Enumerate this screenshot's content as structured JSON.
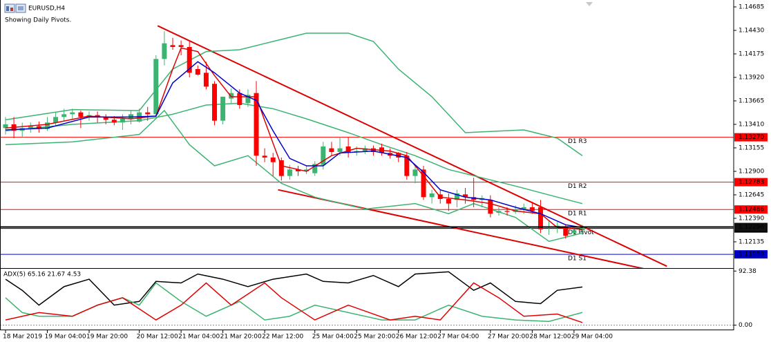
{
  "chart_data": {
    "type": "candlestick",
    "symbol_title": "EURUSD,H4",
    "subtitle": "Showing Daily Pivots.",
    "categories": [
      "18 Mar 2019",
      null,
      null,
      null,
      null,
      "19 Mar 04:00",
      null,
      null,
      null,
      null,
      "19 Mar 20:00",
      null,
      null,
      null,
      null,
      null,
      "20 Mar 12:00",
      null,
      null,
      null,
      null,
      "21 Mar 04:00",
      null,
      null,
      null,
      null,
      "21 Mar 20:00",
      null,
      null,
      null,
      null,
      "22 Mar 12:00",
      null,
      null,
      null,
      null,
      null,
      "25 Mar 04:00",
      null,
      null,
      null,
      null,
      "25 Mar 20:00",
      null,
      null,
      null,
      null,
      "26 Mar 12:00",
      null,
      null,
      null,
      null,
      "27 Mar 04:00",
      null,
      null,
      null,
      null,
      null,
      "27 Mar 20:00",
      null,
      null,
      null,
      null,
      "28 Mar 12:00",
      null,
      null,
      null,
      null,
      "29 Mar 04:00",
      null
    ],
    "ohlc": [
      [
        1.1337,
        1.1349,
        1.133,
        1.1341
      ],
      [
        1.1341,
        1.1349,
        1.1326,
        1.1334
      ],
      [
        1.1334,
        1.1343,
        1.1327,
        1.1337
      ],
      [
        1.1337,
        1.1343,
        1.1332,
        1.1339
      ],
      [
        1.1339,
        1.1344,
        1.1332,
        1.1336
      ],
      [
        1.1336,
        1.1349,
        1.1334,
        1.1343
      ],
      [
        1.1343,
        1.1354,
        1.134,
        1.1349
      ],
      [
        1.1349,
        1.1358,
        1.1345,
        1.1352
      ],
      [
        1.1352,
        1.1358,
        1.1347,
        1.1354
      ],
      [
        1.1354,
        1.1356,
        1.1337,
        1.1349
      ],
      [
        1.1349,
        1.1355,
        1.1345,
        1.1351
      ],
      [
        1.1351,
        1.1355,
        1.1343,
        1.1349
      ],
      [
        1.1349,
        1.1352,
        1.1341,
        1.1346
      ],
      [
        1.1346,
        1.135,
        1.134,
        1.1343
      ],
      [
        1.1343,
        1.1352,
        1.1335,
        1.1347
      ],
      [
        1.1347,
        1.1356,
        1.1341,
        1.1352
      ],
      [
        1.1344,
        1.1358,
        1.1343,
        1.1354
      ],
      [
        1.1354,
        1.136,
        1.1345,
        1.1352
      ],
      [
        1.1352,
        1.1416,
        1.1349,
        1.1412
      ],
      [
        1.1412,
        1.1442,
        1.1405,
        1.1429
      ],
      [
        1.1427,
        1.1435,
        1.1422,
        1.1425
      ],
      [
        1.1427,
        1.1432,
        1.1416,
        1.1425
      ],
      [
        1.1425,
        1.1431,
        1.1392,
        1.1397
      ],
      [
        1.1401,
        1.1405,
        1.1394,
        1.1395
      ],
      [
        1.1397,
        1.1409,
        1.1379,
        1.1382
      ],
      [
        1.1385,
        1.1388,
        1.134,
        1.1345
      ],
      [
        1.1345,
        1.1371,
        1.1341,
        1.1371
      ],
      [
        1.1369,
        1.138,
        1.1364,
        1.1375
      ],
      [
        1.1375,
        1.1379,
        1.1358,
        1.1362
      ],
      [
        1.1364,
        1.1379,
        1.136,
        1.1373
      ],
      [
        1.1375,
        1.1388,
        1.1296,
        1.1307
      ],
      [
        1.1307,
        1.1315,
        1.13,
        1.1305
      ],
      [
        1.1305,
        1.131,
        1.1285,
        1.13
      ],
      [
        1.1302,
        1.1305,
        1.128,
        1.1285
      ],
      [
        1.1285,
        1.1297,
        1.1281,
        1.1292
      ],
      [
        1.1292,
        1.1296,
        1.1285,
        1.129
      ],
      [
        1.129,
        1.1296,
        1.1287,
        1.1292
      ],
      [
        1.1288,
        1.1301,
        1.1285,
        1.1298
      ],
      [
        1.1297,
        1.1322,
        1.1292,
        1.1317
      ],
      [
        1.1315,
        1.1322,
        1.1307,
        1.1311
      ],
      [
        1.1311,
        1.1327,
        1.1307,
        1.1315
      ],
      [
        1.1317,
        1.1327,
        1.1305,
        1.131
      ],
      [
        1.1311,
        1.1317,
        1.1307,
        1.1312
      ],
      [
        1.1312,
        1.1318,
        1.1309,
        1.1315
      ],
      [
        1.1315,
        1.1318,
        1.1307,
        1.1311
      ],
      [
        1.1316,
        1.132,
        1.1307,
        1.131
      ],
      [
        1.131,
        1.1315,
        1.1304,
        1.1307
      ],
      [
        1.131,
        1.1311,
        1.13,
        1.1305
      ],
      [
        1.1307,
        1.1311,
        1.1281,
        1.1285
      ],
      [
        1.1285,
        1.1296,
        1.1277,
        1.1292
      ],
      [
        1.1292,
        1.1296,
        1.1259,
        1.1262
      ],
      [
        1.1262,
        1.127,
        1.1255,
        1.1266
      ],
      [
        1.1265,
        1.127,
        1.1255,
        1.126
      ],
      [
        1.126,
        1.1266,
        1.1247,
        1.1255
      ],
      [
        1.1259,
        1.127,
        1.1251,
        1.1266
      ],
      [
        1.1265,
        1.1272,
        1.1255,
        1.1262
      ],
      [
        1.1262,
        1.1283,
        1.1251,
        1.1259
      ],
      [
        1.1259,
        1.1264,
        1.1251,
        1.1261
      ],
      [
        1.1259,
        1.1264,
        1.124,
        1.1244
      ],
      [
        1.1245,
        1.1251,
        1.1242,
        1.1247
      ],
      [
        1.1247,
        1.1251,
        1.1242,
        1.1246
      ],
      [
        1.1246,
        1.1253,
        1.1244,
        1.1249
      ],
      [
        1.1249,
        1.1255,
        1.1244,
        1.1251
      ],
      [
        1.1251,
        1.1257,
        1.1244,
        1.1247
      ],
      [
        1.1251,
        1.1259,
        1.1223,
        1.1227
      ],
      [
        1.1229,
        1.1236,
        1.1221,
        1.123
      ],
      [
        1.1229,
        1.1235,
        1.1223,
        1.1231
      ],
      [
        1.1229,
        1.1232,
        1.1217,
        1.122
      ],
      [
        1.1223,
        1.1229,
        1.122,
        1.1226
      ],
      [
        1.1226,
        1.1232,
        1.1221,
        1.1229
      ]
    ],
    "up_color": "#3cb371",
    "down_color": "#ff0000",
    "xlim": [
      -0.66,
      87.1
    ],
    "ylim": [
      1.1185,
      1.1476
    ],
    "yticks": [
      1.14685,
      {
        "value": 1.1443,
        "label": "1.14430"
      },
      1.14175,
      {
        "value": 1.1392,
        "label": "1.13920"
      },
      1.13665,
      {
        "value": 1.1341,
        "label": "1.13410"
      },
      1.13155,
      {
        "value": 1.129,
        "label": "1.12900"
      },
      1.12645,
      {
        "value": 1.1239,
        "label": "1.12390"
      },
      1.12135
    ],
    "lines": [
      {
        "color": "#3cb371",
        "x": [
          0,
          8,
          16,
          20,
          24,
          28,
          32,
          36,
          41,
          44,
          47,
          51,
          55,
          62,
          66,
          69
        ],
        "values": [
          1.1346,
          1.1357,
          1.1356,
          1.1401,
          1.142,
          1.1422,
          1.1431,
          1.144,
          1.144,
          1.1431,
          1.1401,
          1.1371,
          1.1332,
          1.1335,
          1.1326,
          1.1307
        ]
      },
      {
        "color": "#3cb371",
        "x": [
          0,
          8,
          16,
          20,
          24,
          28,
          32,
          36,
          41,
          45,
          49,
          53,
          57,
          61,
          66,
          69
        ],
        "values": [
          1.1334,
          1.1341,
          1.1345,
          1.1352,
          1.1362,
          1.1364,
          1.1358,
          1.1347,
          1.1332,
          1.1319,
          1.1307,
          1.1292,
          1.1283,
          1.1274,
          1.1262,
          1.1255
        ]
      },
      {
        "color": "#3cb371",
        "x": [
          0,
          8,
          16,
          19,
          22,
          25,
          29,
          33,
          37,
          43,
          49,
          53,
          56,
          61,
          65,
          69
        ],
        "values": [
          1.1319,
          1.1322,
          1.133,
          1.1356,
          1.1319,
          1.1296,
          1.1307,
          1.1277,
          1.1262,
          1.1249,
          1.1255,
          1.1244,
          1.1255,
          1.124,
          1.1214,
          1.1223
        ]
      },
      {
        "color": "#e00000",
        "x": [
          0,
          5,
          10,
          15,
          18,
          20,
          21,
          23,
          25,
          27,
          30,
          31,
          33,
          36,
          39,
          42,
          46,
          48,
          50,
          52,
          55,
          58,
          61,
          64,
          66,
          69
        ],
        "values": [
          1.1337,
          1.1341,
          1.135,
          1.1347,
          1.135,
          1.1401,
          1.1424,
          1.142,
          1.1394,
          1.1371,
          1.1371,
          1.1345,
          1.1296,
          1.129,
          1.1307,
          1.1315,
          1.1312,
          1.1307,
          1.1285,
          1.1262,
          1.1259,
          1.1255,
          1.1247,
          1.1244,
          1.1229,
          1.1227
        ]
      },
      {
        "color": "#0000cd",
        "x": [
          0,
          5,
          10,
          15,
          18,
          20,
          23,
          25,
          28,
          30,
          32,
          34,
          36,
          38,
          40,
          44,
          48,
          50,
          52,
          55,
          58,
          61,
          64,
          67,
          69
        ],
        "values": [
          1.1335,
          1.1337,
          1.1349,
          1.1349,
          1.135,
          1.1386,
          1.1409,
          1.1397,
          1.1375,
          1.1367,
          1.1334,
          1.1304,
          1.1296,
          1.1296,
          1.131,
          1.1312,
          1.1305,
          1.1289,
          1.127,
          1.1262,
          1.1259,
          1.1251,
          1.1244,
          1.1232,
          1.1229
        ]
      }
    ],
    "trendlines": {
      "color": "#dd0000",
      "lines": [
        {
          "points": [
            [
              18.2,
              1.1448
            ],
            [
              79.1,
              1.1187
            ]
          ]
        },
        {
          "points": [
            [
              32.6,
              1.127
            ],
            [
              77,
              1.1183
            ]
          ]
        }
      ]
    },
    "pivots": [
      {
        "label": "D1 R3",
        "value": 1.1327,
        "price_label": "1.13270",
        "color": "#ff0000"
      },
      {
        "label": "D1 R2",
        "value": 1.12783,
        "color": "#ff0000"
      },
      {
        "label": "D1 R1",
        "value": 1.12486,
        "color": "#ff0000"
      },
      {
        "label": "D1 Pivot",
        "value": 1.1228,
        "color": "#000000"
      },
      {
        "label": "D1 S1",
        "value": 1.11999,
        "color": "#0000cd"
      }
    ],
    "current_price": 1.12296,
    "indicator": {
      "label": "ADX(5) 65.16 21.67 4.53",
      "ylim": [
        -8.7,
        96.3
      ],
      "yticks": [
        92.38,
        {
          "value": 0,
          "label": "0.00"
        }
      ],
      "series": [
        {
          "color": "#000000",
          "x": [
            0,
            2,
            4,
            7,
            10,
            13,
            16,
            18,
            21,
            23,
            26,
            29,
            32,
            36,
            38,
            41,
            44,
            47,
            49,
            53,
            56,
            58,
            61,
            64,
            66,
            69
          ],
          "values": [
            78.5,
            59.5,
            34.2,
            65.8,
            78.5,
            34.2,
            40.5,
            74.7,
            72.1,
            87.3,
            78.5,
            65.8,
            78.5,
            87.3,
            74.7,
            72.1,
            84.8,
            65.8,
            87.3,
            91.1,
            59.5,
            72.1,
            40.5,
            36.7,
            59.5,
            65.2
          ]
        },
        {
          "color": "#3cb371",
          "x": [
            0,
            2,
            4,
            8,
            11,
            14,
            16,
            18,
            21,
            24,
            28,
            31,
            34,
            37,
            41,
            45,
            49,
            53,
            57,
            61,
            65,
            69
          ],
          "values": [
            46.8,
            21.5,
            15.2,
            15.2,
            34.2,
            46.8,
            34.2,
            72.1,
            40.5,
            15.2,
            40.5,
            8.9,
            15.2,
            34.2,
            21.5,
            8.9,
            8.9,
            34.2,
            15.2,
            8.9,
            6.3,
            21.67
          ]
        },
        {
          "color": "#e00000",
          "x": [
            0,
            4,
            8,
            11,
            14,
            18,
            21,
            24,
            27,
            31,
            33,
            37,
            41,
            46,
            49,
            52,
            56,
            59,
            62,
            66,
            69
          ],
          "values": [
            8.9,
            21.5,
            15.2,
            34.2,
            46.8,
            8.9,
            34.2,
            72.1,
            34.2,
            72.1,
            46.8,
            8.9,
            34.2,
            8.9,
            15.2,
            8.9,
            72.1,
            46.8,
            15.2,
            19.0,
            4.53
          ]
        }
      ]
    }
  }
}
